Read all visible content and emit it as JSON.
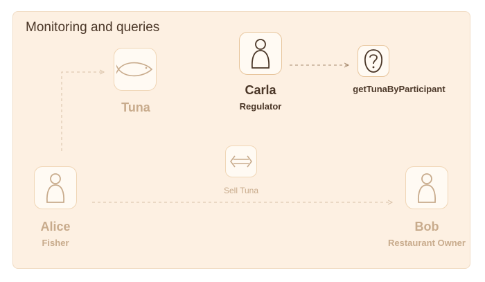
{
  "panel": {
    "title": "Monitoring and queries"
  },
  "nodes": {
    "tuna": {
      "name": "Tuna",
      "icon": "fish-icon"
    },
    "carla": {
      "name": "Carla",
      "role": "Regulator",
      "icon": "person-icon"
    },
    "query": {
      "name": "getTunaByParticipant",
      "icon": "query-icon"
    },
    "alice": {
      "name": "Alice",
      "role": "Fisher",
      "icon": "person-icon"
    },
    "bob": {
      "name": "Bob",
      "role": "Restaurant Owner",
      "icon": "person-icon"
    },
    "sell": {
      "label": "Sell Tuna",
      "icon": "exchange-icon"
    }
  },
  "colors": {
    "panel_bg": "#fdf0e2",
    "strong": "#4a3627",
    "faded": "#c8ab8c"
  }
}
